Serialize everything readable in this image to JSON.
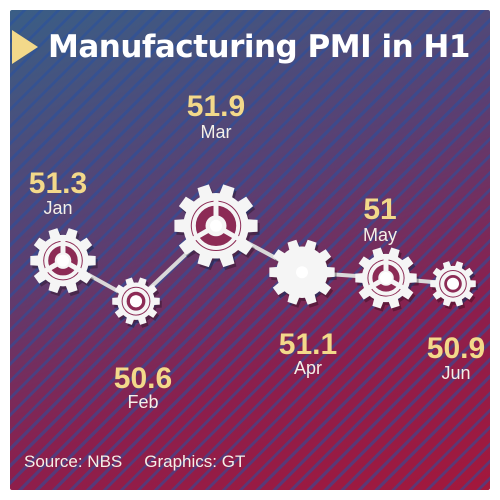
{
  "title": "Manufacturing PMI in H1",
  "footer": {
    "source": "Source: NBS",
    "graphics": "Graphics: GT"
  },
  "colors": {
    "value_text": "#f3d98a",
    "line": "#d9d9d9",
    "gear": "#f5f5f5",
    "title_arrow": "#f3d98a"
  },
  "chart_data": {
    "type": "line",
    "title": "Manufacturing PMI in H1",
    "categories": [
      "Jan",
      "Feb",
      "Mar",
      "Apr",
      "May",
      "Jun"
    ],
    "series": [
      {
        "values": [
          51.3,
          50.6,
          51.9,
          51.1,
          51,
          50.9
        ]
      }
    ],
    "value_labels": [
      "51.3",
      "50.6",
      "51.9",
      "51.1",
      "51",
      "50.9"
    ],
    "markers": [
      "gear",
      "gear",
      "gear",
      "gear",
      "gear",
      "gear"
    ],
    "xlabel": "",
    "ylabel": "",
    "grid": false,
    "legend": "none"
  }
}
